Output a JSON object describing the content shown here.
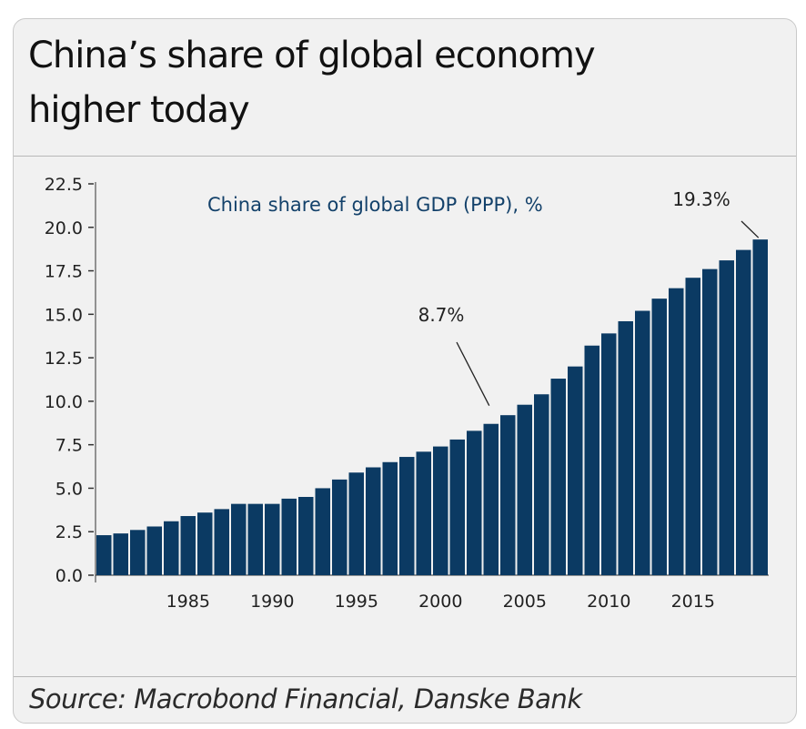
{
  "title_lines": [
    "China’s share of global economy",
    "higher today"
  ],
  "source": "Source: Macrobond Financial, Danske Bank",
  "chart_data": {
    "type": "bar",
    "title": "China’s share of global economy higher today",
    "series": [
      {
        "name": "China share of global GDP (PPP), %",
        "color": "#0b3a63",
        "x": [
          1980,
          1981,
          1982,
          1983,
          1984,
          1985,
          1986,
          1987,
          1988,
          1989,
          1990,
          1991,
          1992,
          1993,
          1994,
          1995,
          1996,
          1997,
          1998,
          1999,
          2000,
          2001,
          2002,
          2003,
          2004,
          2005,
          2006,
          2007,
          2008,
          2009,
          2010,
          2011,
          2012,
          2013,
          2014,
          2015,
          2016,
          2017,
          2018,
          2019
        ],
        "values": [
          2.3,
          2.4,
          2.6,
          2.8,
          3.1,
          3.4,
          3.6,
          3.8,
          4.1,
          4.1,
          4.1,
          4.4,
          4.5,
          5.0,
          5.5,
          5.9,
          6.2,
          6.5,
          6.8,
          7.1,
          7.4,
          7.8,
          8.3,
          8.7,
          9.2,
          9.8,
          10.4,
          11.3,
          12.0,
          13.2,
          13.9,
          14.6,
          15.2,
          15.9,
          16.5,
          17.1,
          17.6,
          18.1,
          18.7,
          19.3
        ]
      }
    ],
    "ylim": [
      0,
      22.5
    ],
    "y_ticks": [
      "0.0",
      "2.5",
      "5.0",
      "7.5",
      "10.0",
      "12.5",
      "15.0",
      "17.5",
      "20.0",
      "22.5"
    ],
    "x_ticks": [
      "1985",
      "1990",
      "1995",
      "2000",
      "2005",
      "2010",
      "2015"
    ],
    "x_tick_values": [
      1985,
      1990,
      1995,
      2000,
      2005,
      2010,
      2015
    ],
    "annotations": [
      {
        "text": "8.7%",
        "x": 2003
      },
      {
        "text": "19.3%",
        "x": 2019
      }
    ],
    "grid": false,
    "legend_position": "top"
  }
}
